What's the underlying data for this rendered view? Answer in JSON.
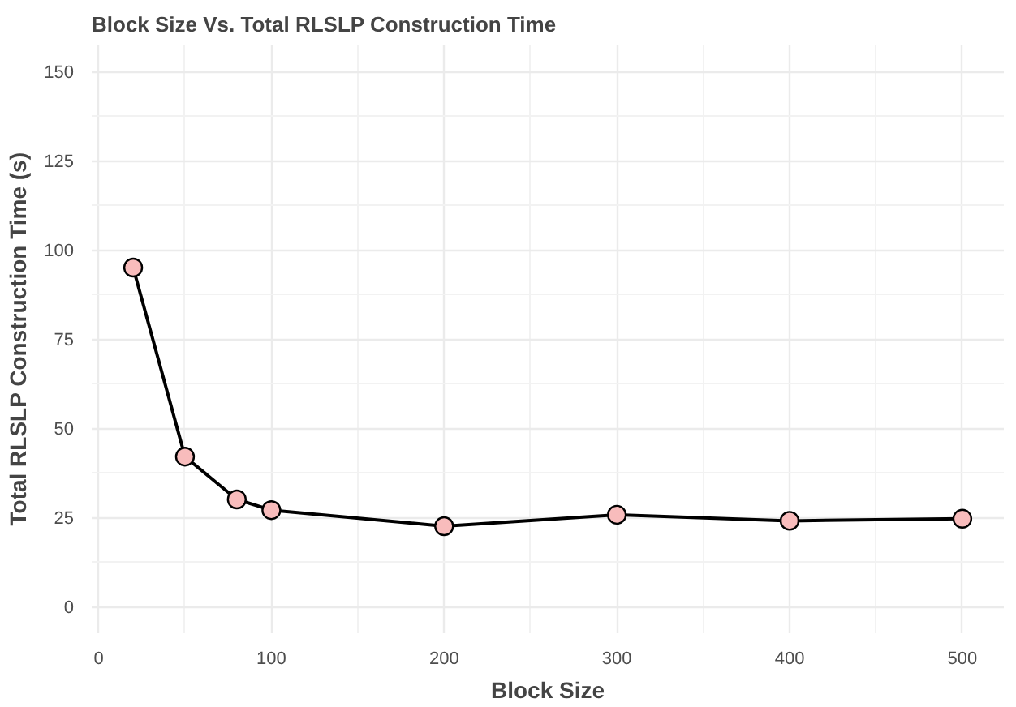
{
  "chart_data": {
    "type": "line",
    "title": "Block Size Vs. Total RLSLP Construction Time",
    "xlabel": "Block Size",
    "ylabel": "Total RLSLP Construction Time (s)",
    "x": [
      20,
      50,
      80,
      100,
      200,
      300,
      400,
      500
    ],
    "series": [
      {
        "color": "#000000",
        "values": [
          95,
          42,
          30,
          27,
          22.5,
          25.7,
          24,
          24.6
        ]
      }
    ],
    "xlim": [
      -4,
      524
    ],
    "xticks": [
      0,
      100,
      200,
      300,
      400,
      500
    ],
    "ylim": [
      -7.5,
      157.5
    ],
    "yticks": [
      0,
      25,
      50,
      75,
      100,
      125,
      150
    ],
    "grid": true,
    "marker": "circle",
    "line_style": "solid"
  }
}
